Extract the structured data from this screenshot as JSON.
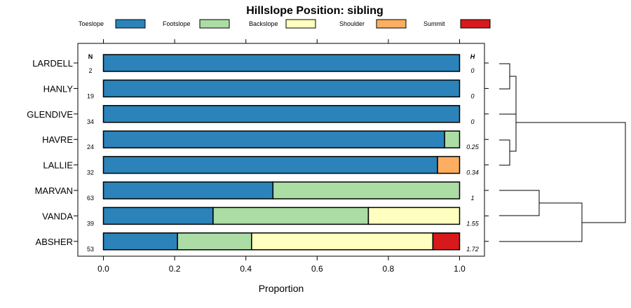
{
  "chart_data": {
    "type": "bar",
    "stacked": true,
    "orientation": "horizontal",
    "title": "Hillslope Position: sibling",
    "xlabel": "Proportion",
    "ylabel": "",
    "xlim": [
      0,
      1
    ],
    "x_ticks": [
      "0.0",
      "0.2",
      "0.4",
      "0.6",
      "0.8",
      "1.0"
    ],
    "legend_position": "top",
    "series": [
      {
        "name": "Toeslope",
        "color": "#2b83ba",
        "values": [
          1.0,
          1.0,
          1.0,
          0.958,
          0.938,
          0.476,
          0.308,
          0.208
        ]
      },
      {
        "name": "Footslope",
        "color": "#abdda4",
        "values": [
          0,
          0,
          0,
          0.042,
          0,
          0.524,
          0.436,
          0.208
        ]
      },
      {
        "name": "Backslope",
        "color": "#ffffbf",
        "values": [
          0,
          0,
          0,
          0,
          0,
          0,
          0.256,
          0.509
        ]
      },
      {
        "name": "Shoulder",
        "color": "#fdae61",
        "values": [
          0,
          0,
          0,
          0,
          0.062,
          0,
          0,
          0
        ]
      },
      {
        "name": "Summit",
        "color": "#d7191c",
        "values": [
          0,
          0,
          0,
          0,
          0,
          0,
          0,
          0.075
        ]
      }
    ],
    "categories": [
      "LARDELL",
      "HANLY",
      "GLENDIVE",
      "HAVRE",
      "LALLIE",
      "MARVAN",
      "VANDA",
      "ABSHER"
    ],
    "n_header": "N",
    "n_values": [
      "2",
      "19",
      "34",
      "24",
      "32",
      "63",
      "39",
      "53"
    ],
    "h_header": "H",
    "h_values": [
      "0",
      "0",
      "0",
      "0.25",
      "0.34",
      "1",
      "1.55",
      "1.72"
    ],
    "dendrogram": "right"
  }
}
